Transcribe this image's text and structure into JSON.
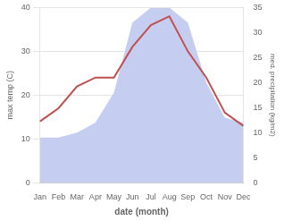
{
  "chart_data": {
    "type": "line",
    "categories": [
      "Jan",
      "Feb",
      "Mar",
      "Apr",
      "May",
      "Jun",
      "Jul",
      "Aug",
      "Sep",
      "Oct",
      "Nov",
      "Dec"
    ],
    "series": [
      {
        "type": "line",
        "color": "#c0504d",
        "values": [
          14,
          17,
          22,
          24,
          24,
          31,
          36,
          38,
          30,
          24,
          16,
          13
        ]
      },
      {
        "type": "area",
        "color": "#c5cdf0",
        "axis": "y2",
        "values": [
          9,
          9,
          10,
          12,
          18,
          32,
          35,
          35,
          32,
          20,
          13,
          12
        ]
      }
    ],
    "xlabel": "date (month)",
    "ylabel": "max temp (C)",
    "y2label": "med. precipitation (kg/m2)",
    "ylim": [
      0,
      40
    ],
    "yticks": [
      0,
      10,
      20,
      30,
      40
    ],
    "y2lim": [
      0,
      35
    ],
    "y2ticks": [
      0,
      5,
      10,
      15,
      20,
      25,
      30,
      35
    ],
    "grid": true
  }
}
